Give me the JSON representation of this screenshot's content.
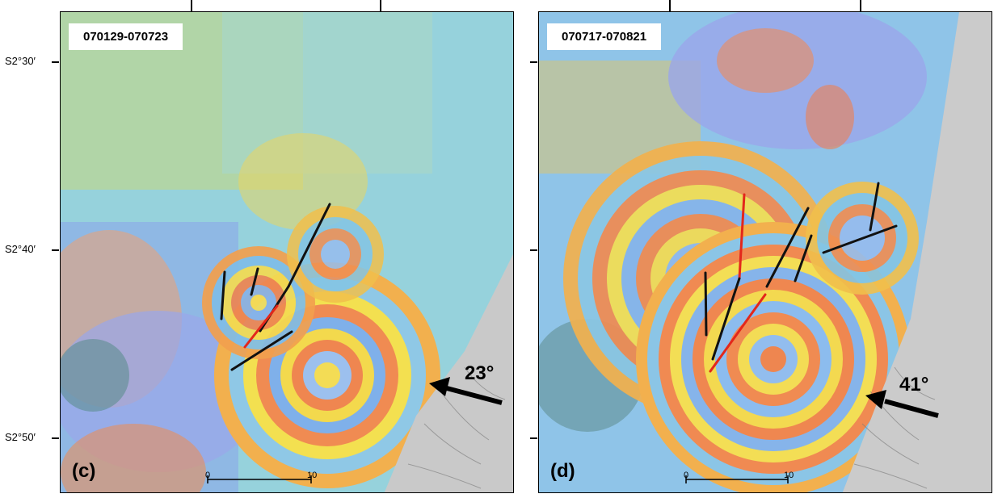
{
  "latitude_labels": [
    "S2°30′",
    "S2°40′",
    "S2°50′"
  ],
  "panels": [
    {
      "letter": "(c)",
      "date_range": "070129-070723",
      "incidence_angle": "23°",
      "scale": {
        "start": "0",
        "end": "10"
      },
      "colors": {
        "fault_black": "#111111",
        "fault_red": "#e3271b",
        "hillshade": "#c8c8c8"
      }
    },
    {
      "letter": "(d)",
      "date_range": "070717-070821",
      "incidence_angle": "41°",
      "scale": {
        "start": "0",
        "end": "10"
      },
      "colors": {
        "fault_black": "#111111",
        "fault_red": "#e3271b",
        "hillshade": "#c8c8c8"
      }
    }
  ]
}
